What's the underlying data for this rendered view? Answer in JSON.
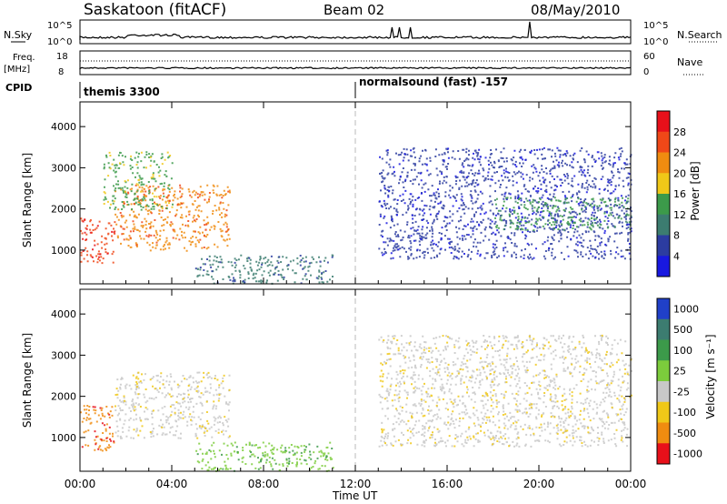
{
  "header": {
    "station": "Saskatoon (fitACF)",
    "beam": "Beam 02",
    "date": "08/May/2010"
  },
  "noise_panel": {
    "left_label": "N.Sky",
    "left_ticks": [
      "10^5",
      "10^0"
    ],
    "right_ticks": [
      "10^5",
      "10^0"
    ],
    "right_label": "N.Search"
  },
  "freq_panel": {
    "left_label_1": "Freq.",
    "left_label_2": "[MHz]",
    "left_ticks": [
      "18",
      "8"
    ],
    "right_ticks": [
      "60",
      "0"
    ],
    "right_label": "Nave"
  },
  "cpid_panel": {
    "label": "CPID",
    "program_1": "themis 3300",
    "program_2": "normalsound (fast) -157"
  },
  "chart_data": [
    {
      "type": "heatmap",
      "name": "power",
      "ylabel": "Slant Range [km]",
      "ylim": [
        180,
        4600
      ],
      "yticks": [
        "1000",
        "2000",
        "3000",
        "4000"
      ],
      "xlim_hours": [
        0,
        24
      ],
      "colorbar": {
        "label": "Power [dB]",
        "ticks": [
          "28",
          "24",
          "20",
          "16",
          "12",
          "8",
          "4"
        ],
        "colors": [
          "#e8101a",
          "#f04818",
          "#f08c10",
          "#f0c818",
          "#3c9a4a",
          "#3c7c70",
          "#2c3ca0",
          "#1818e0"
        ]
      },
      "echo_bands": [
        {
          "t_hours": [
            0.0,
            1.5
          ],
          "range_km": [
            700,
            1800
          ],
          "power_db": 26
        },
        {
          "t_hours": [
            1.5,
            6.5
          ],
          "range_km": [
            1000,
            2600
          ],
          "power_db": 22
        },
        {
          "t_hours": [
            1.0,
            4.0
          ],
          "range_km": [
            2000,
            3400
          ],
          "power_db": 12
        },
        {
          "t_hours": [
            5.0,
            11.0
          ],
          "range_km": [
            200,
            900
          ],
          "power_db": 10
        },
        {
          "t_hours": [
            13.0,
            24.0
          ],
          "range_km": [
            800,
            3500
          ],
          "power_db": 6
        },
        {
          "t_hours": [
            18.0,
            24.0
          ],
          "range_km": [
            1500,
            2300
          ],
          "power_db": 14
        }
      ]
    },
    {
      "type": "heatmap",
      "name": "velocity",
      "ylabel": "Slant Range [km]",
      "ylim": [
        180,
        4600
      ],
      "yticks": [
        "1000",
        "2000",
        "3000",
        "4000"
      ],
      "xlim_hours": [
        0,
        24
      ],
      "colorbar": {
        "label": "Velocity [m s⁻¹]",
        "ticks": [
          "1000",
          "500",
          "100",
          "25",
          "-25",
          "-100",
          "-500",
          "-1000"
        ],
        "colors": [
          "#2040c8",
          "#3c7c70",
          "#3c9a4a",
          "#7ccc3c",
          "#c8c8c8",
          "#f0c818",
          "#f08c10",
          "#e8101a"
        ]
      },
      "echo_bands": [
        {
          "t_hours": [
            0.0,
            1.5
          ],
          "range_km": [
            700,
            1800
          ],
          "velocity_ms": -300
        },
        {
          "t_hours": [
            1.5,
            6.5
          ],
          "range_km": [
            1000,
            2600
          ],
          "velocity_ms": 0
        },
        {
          "t_hours": [
            5.0,
            11.0
          ],
          "range_km": [
            200,
            900
          ],
          "velocity_ms": 80
        },
        {
          "t_hours": [
            13.0,
            24.0
          ],
          "range_km": [
            800,
            3500
          ],
          "velocity_ms": 0
        }
      ]
    }
  ],
  "xaxis": {
    "ticks": [
      "00:00",
      "04:00",
      "08:00",
      "12:00",
      "16:00",
      "20:00",
      "00:00"
    ],
    "label": "Time UT"
  }
}
